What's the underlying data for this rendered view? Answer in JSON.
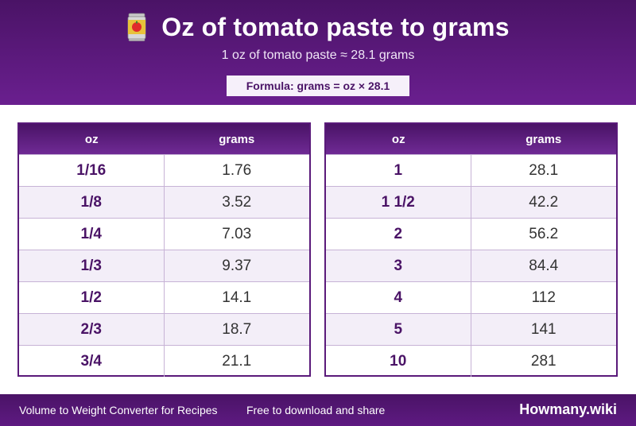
{
  "header": {
    "title": "Oz of tomato paste to grams",
    "icon": "tomato-paste-can-icon",
    "subtitle": "1 oz of tomato paste ≈ 28.1 grams",
    "formula": "Formula: grams = oz × 28.1"
  },
  "tables": {
    "left": {
      "col_oz": "oz",
      "col_grams": "grams",
      "rows": [
        {
          "oz": "1/16",
          "grams": "1.76"
        },
        {
          "oz": "1/8",
          "grams": "3.52"
        },
        {
          "oz": "1/4",
          "grams": "7.03"
        },
        {
          "oz": "1/3",
          "grams": "9.37"
        },
        {
          "oz": "1/2",
          "grams": "14.1"
        },
        {
          "oz": "2/3",
          "grams": "18.7"
        },
        {
          "oz": "3/4",
          "grams": "21.1"
        }
      ]
    },
    "right": {
      "col_oz": "oz",
      "col_grams": "grams",
      "rows": [
        {
          "oz": "1",
          "grams": "28.1"
        },
        {
          "oz": "1 1/2",
          "grams": "42.2"
        },
        {
          "oz": "2",
          "grams": "56.2"
        },
        {
          "oz": "3",
          "grams": "84.4"
        },
        {
          "oz": "4",
          "grams": "112"
        },
        {
          "oz": "5",
          "grams": "141"
        },
        {
          "oz": "10",
          "grams": "281"
        }
      ]
    }
  },
  "footer": {
    "left_text": "Volume to Weight Converter for Recipes",
    "mid_text": "Free to download and share",
    "brand": "Howmany.wiki"
  },
  "colors": {
    "brand_purple": "#4a1366",
    "row_alt": "#f3eef8"
  }
}
